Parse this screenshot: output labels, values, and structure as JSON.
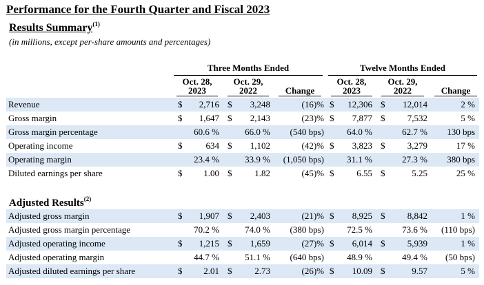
{
  "title": "Performance for the Fourth Quarter and Fiscal 2023",
  "subtitle": "Results Summary",
  "subtitle_note_ref": "(1)",
  "units_note": "(in millions, except per-share amounts and percentages)",
  "section2_title": "Adjusted Results",
  "section2_note_ref": "(2)",
  "groups": {
    "three_months": "Three Months Ended",
    "twelve_months": "Twelve Months Ended"
  },
  "columns": {
    "q_oct28_l1": "Oct. 28,",
    "q_oct28_l2": "2023",
    "q_oct29_l1": "Oct. 29,",
    "q_oct29_l2": "2022",
    "q_change": "Change",
    "y_oct28_l1": "Oct. 28,",
    "y_oct28_l2": "2023",
    "y_oct29_l1": "Oct. 29,",
    "y_oct29_l2": "2022",
    "y_change": "Change"
  },
  "results": [
    {
      "label": "Revenue",
      "q1_cur": "$",
      "q1": "2,716",
      "q2_cur": "$",
      "q2": "3,248",
      "qc": "(16)%",
      "y1_cur": "$",
      "y1": "12,306",
      "y2_cur": "$",
      "y2": "12,014",
      "yc": "2 %"
    },
    {
      "label": "Gross margin",
      "q1_cur": "$",
      "q1": "1,647",
      "q2_cur": "$",
      "q2": "2,143",
      "qc": "(23)%",
      "y1_cur": "$",
      "y1": "7,877",
      "y2_cur": "$",
      "y2": "7,532",
      "yc": "5 %"
    },
    {
      "label": "Gross margin percentage",
      "q1_cur": "",
      "q1": "60.6 %",
      "q2_cur": "",
      "q2": "66.0 %",
      "qc": "(540 bps)",
      "y1_cur": "",
      "y1": "64.0 %",
      "y2_cur": "",
      "y2": "62.7 %",
      "yc": "130 bps"
    },
    {
      "label": "Operating income",
      "q1_cur": "$",
      "q1": "634",
      "q2_cur": "$",
      "q2": "1,102",
      "qc": "(42)%",
      "y1_cur": "$",
      "y1": "3,823",
      "y2_cur": "$",
      "y2": "3,279",
      "yc": "17 %"
    },
    {
      "label": "Operating margin",
      "q1_cur": "",
      "q1": "23.4 %",
      "q2_cur": "",
      "q2": "33.9 %",
      "qc": "(1,050 bps)",
      "y1_cur": "",
      "y1": "31.1 %",
      "y2_cur": "",
      "y2": "27.3 %",
      "yc": "380 bps"
    },
    {
      "label": "Diluted earnings per share",
      "q1_cur": "$",
      "q1": "1.00",
      "q2_cur": "$",
      "q2": "1.82",
      "qc": "(45)%",
      "y1_cur": "$",
      "y1": "6.55",
      "y2_cur": "$",
      "y2": "5.25",
      "yc": "25 %"
    }
  ],
  "adjusted": [
    {
      "label": "Adjusted gross margin",
      "q1_cur": "$",
      "q1": "1,907",
      "q2_cur": "$",
      "q2": "2,403",
      "qc": "(21)%",
      "y1_cur": "$",
      "y1": "8,925",
      "y2_cur": "$",
      "y2": "8,842",
      "yc": "1 %"
    },
    {
      "label": "Adjusted gross margin percentage",
      "q1_cur": "",
      "q1": "70.2 %",
      "q2_cur": "",
      "q2": "74.0 %",
      "qc": "(380 bps)",
      "y1_cur": "",
      "y1": "72.5 %",
      "y2_cur": "",
      "y2": "73.6 %",
      "yc": "(110 bps)"
    },
    {
      "label": "Adjusted operating income",
      "q1_cur": "$",
      "q1": "1,215",
      "q2_cur": "$",
      "q2": "1,659",
      "qc": "(27)%",
      "y1_cur": "$",
      "y1": "6,014",
      "y2_cur": "$",
      "y2": "5,939",
      "yc": "1 %"
    },
    {
      "label": "Adjusted operating margin",
      "q1_cur": "",
      "q1": "44.7 %",
      "q2_cur": "",
      "q2": "51.1 %",
      "qc": "(640 bps)",
      "y1_cur": "",
      "y1": "48.9 %",
      "y2_cur": "",
      "y2": "49.4 %",
      "yc": "(50 bps)"
    },
    {
      "label": "Adjusted diluted earnings per share",
      "q1_cur": "$",
      "q1": "2.01",
      "q2_cur": "$",
      "q2": "2.73",
      "qc": "(26)%",
      "y1_cur": "$",
      "y1": "10.09",
      "y2_cur": "$",
      "y2": "9.57",
      "yc": "5 %"
    }
  ]
}
